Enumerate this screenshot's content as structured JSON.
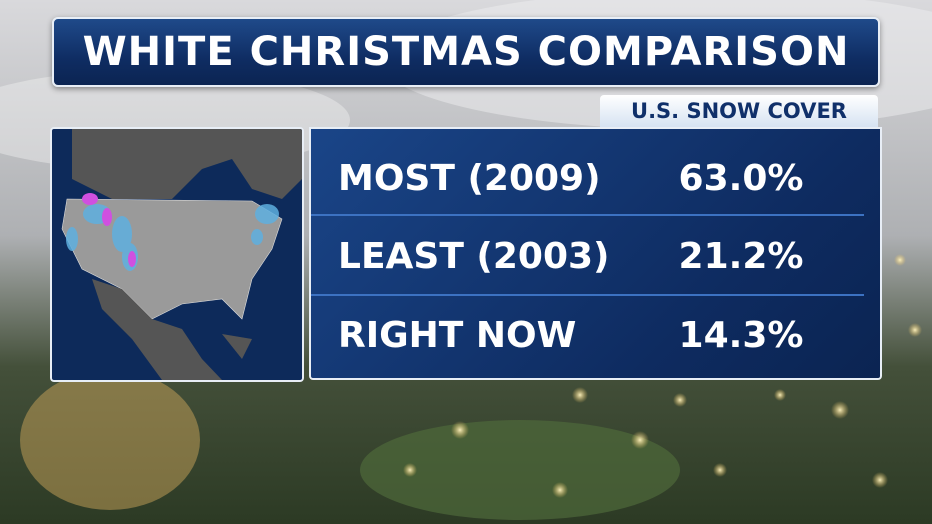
{
  "header": {
    "title": "WHITE CHRISTMAS COMPARISON"
  },
  "table": {
    "title": "U.S. SNOW COVER",
    "rows": [
      [
        "MOST (2009)",
        "63.0%"
      ],
      [
        "LEAST (2003)",
        "21.2%"
      ],
      [
        "RIGHT NOW",
        "14.3%"
      ]
    ]
  }
}
